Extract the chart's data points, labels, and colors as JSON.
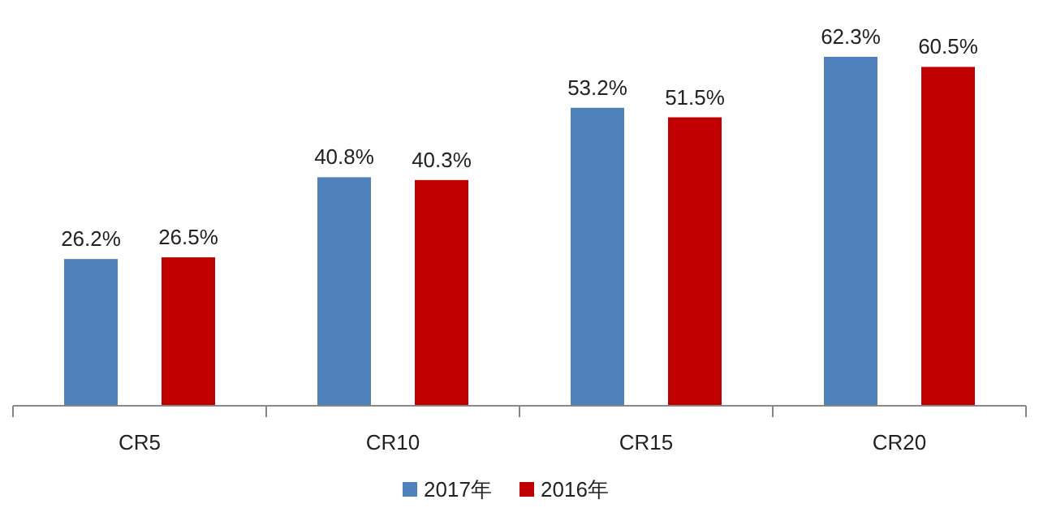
{
  "chart_data": {
    "type": "bar",
    "categories": [
      "CR5",
      "CR10",
      "CR15",
      "CR20"
    ],
    "series": [
      {
        "name": "2017年",
        "color": "#4f81bd",
        "values": [
          26.2,
          40.8,
          53.2,
          62.3
        ],
        "value_labels": [
          "26.2%",
          "40.8%",
          "53.2%",
          "62.3%"
        ]
      },
      {
        "name": "2016年",
        "color": "#c00000",
        "values": [
          26.5,
          40.3,
          51.5,
          60.5
        ],
        "value_labels": [
          "26.5%",
          "40.3%",
          "51.5%",
          "60.5%"
        ]
      }
    ],
    "legend": "bottom"
  }
}
